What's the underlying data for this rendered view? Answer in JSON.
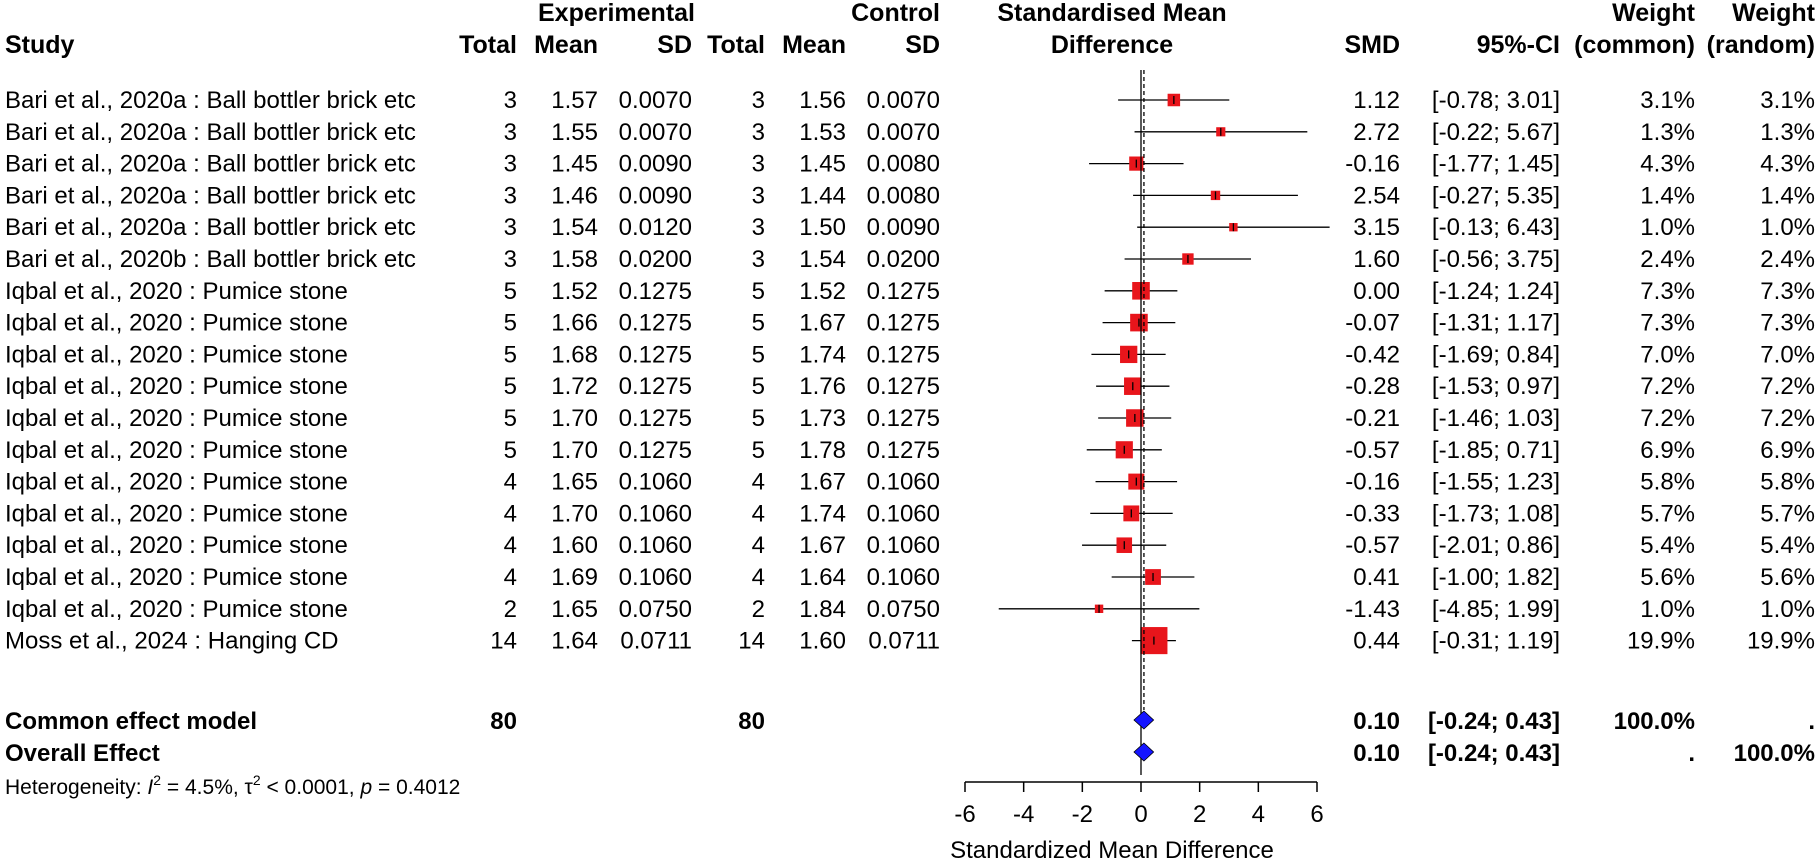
{
  "chart_data": {
    "type": "forest",
    "headers": {
      "study": "Study",
      "experimental": "Experimental",
      "control": "Control",
      "total": "Total",
      "mean": "Mean",
      "sd": "SD",
      "effect_line1": "Standardised Mean",
      "effect_line2": "Difference",
      "smd": "SMD",
      "ci": "95%-CI",
      "weight1": "Weight",
      "weight_common": "(common)",
      "weight_random": "(random)"
    },
    "studies": [
      {
        "label": "Bari et al., 2020a : Ball bottler brick etc",
        "e_total": "3",
        "e_mean": "1.57",
        "e_sd": "0.0070",
        "c_total": "3",
        "c_mean": "1.56",
        "c_sd": "0.0070",
        "smd": 1.12,
        "lower": -0.78,
        "upper": 3.01,
        "smd_text": "1.12",
        "ci_text": "[-0.78; 3.01]",
        "w_common": "3.1%",
        "w_random": "3.1%",
        "weight": 3.1
      },
      {
        "label": "Bari et al., 2020a : Ball bottler brick etc",
        "e_total": "3",
        "e_mean": "1.55",
        "e_sd": "0.0070",
        "c_total": "3",
        "c_mean": "1.53",
        "c_sd": "0.0070",
        "smd": 2.72,
        "lower": -0.22,
        "upper": 5.67,
        "smd_text": "2.72",
        "ci_text": "[-0.22; 5.67]",
        "w_common": "1.3%",
        "w_random": "1.3%",
        "weight": 1.3
      },
      {
        "label": "Bari et al., 2020a : Ball bottler brick etc",
        "e_total": "3",
        "e_mean": "1.45",
        "e_sd": "0.0090",
        "c_total": "3",
        "c_mean": "1.45",
        "c_sd": "0.0080",
        "smd": -0.16,
        "lower": -1.77,
        "upper": 1.45,
        "smd_text": "-0.16",
        "ci_text": "[-1.77; 1.45]",
        "w_common": "4.3%",
        "w_random": "4.3%",
        "weight": 4.3
      },
      {
        "label": "Bari et al., 2020a : Ball bottler brick etc",
        "e_total": "3",
        "e_mean": "1.46",
        "e_sd": "0.0090",
        "c_total": "3",
        "c_mean": "1.44",
        "c_sd": "0.0080",
        "smd": 2.54,
        "lower": -0.27,
        "upper": 5.35,
        "smd_text": "2.54",
        "ci_text": "[-0.27; 5.35]",
        "w_common": "1.4%",
        "w_random": "1.4%",
        "weight": 1.4
      },
      {
        "label": "Bari et al., 2020a : Ball bottler brick etc",
        "e_total": "3",
        "e_mean": "1.54",
        "e_sd": "0.0120",
        "c_total": "3",
        "c_mean": "1.50",
        "c_sd": "0.0090",
        "smd": 3.15,
        "lower": -0.13,
        "upper": 6.43,
        "smd_text": "3.15",
        "ci_text": "[-0.13; 6.43]",
        "w_common": "1.0%",
        "w_random": "1.0%",
        "weight": 1.0
      },
      {
        "label": "Bari et al., 2020b : Ball bottler brick etc",
        "e_total": "3",
        "e_mean": "1.58",
        "e_sd": "0.0200",
        "c_total": "3",
        "c_mean": "1.54",
        "c_sd": "0.0200",
        "smd": 1.6,
        "lower": -0.56,
        "upper": 3.75,
        "smd_text": "1.60",
        "ci_text": "[-0.56; 3.75]",
        "w_common": "2.4%",
        "w_random": "2.4%",
        "weight": 2.4
      },
      {
        "label": "Iqbal et al., 2020 : Pumice stone",
        "e_total": "5",
        "e_mean": "1.52",
        "e_sd": "0.1275",
        "c_total": "5",
        "c_mean": "1.52",
        "c_sd": "0.1275",
        "smd": 0.0,
        "lower": -1.24,
        "upper": 1.24,
        "smd_text": "0.00",
        "ci_text": "[-1.24; 1.24]",
        "w_common": "7.3%",
        "w_random": "7.3%",
        "weight": 7.3
      },
      {
        "label": "Iqbal et al., 2020 : Pumice stone",
        "e_total": "5",
        "e_mean": "1.66",
        "e_sd": "0.1275",
        "c_total": "5",
        "c_mean": "1.67",
        "c_sd": "0.1275",
        "smd": -0.07,
        "lower": -1.31,
        "upper": 1.17,
        "smd_text": "-0.07",
        "ci_text": "[-1.31; 1.17]",
        "w_common": "7.3%",
        "w_random": "7.3%",
        "weight": 7.3
      },
      {
        "label": "Iqbal et al., 2020 : Pumice stone",
        "e_total": "5",
        "e_mean": "1.68",
        "e_sd": "0.1275",
        "c_total": "5",
        "c_mean": "1.74",
        "c_sd": "0.1275",
        "smd": -0.42,
        "lower": -1.69,
        "upper": 0.84,
        "smd_text": "-0.42",
        "ci_text": "[-1.69; 0.84]",
        "w_common": "7.0%",
        "w_random": "7.0%",
        "weight": 7.0
      },
      {
        "label": "Iqbal et al., 2020 : Pumice stone",
        "e_total": "5",
        "e_mean": "1.72",
        "e_sd": "0.1275",
        "c_total": "5",
        "c_mean": "1.76",
        "c_sd": "0.1275",
        "smd": -0.28,
        "lower": -1.53,
        "upper": 0.97,
        "smd_text": "-0.28",
        "ci_text": "[-1.53; 0.97]",
        "w_common": "7.2%",
        "w_random": "7.2%",
        "weight": 7.2
      },
      {
        "label": "Iqbal et al., 2020 : Pumice stone",
        "e_total": "5",
        "e_mean": "1.70",
        "e_sd": "0.1275",
        "c_total": "5",
        "c_mean": "1.73",
        "c_sd": "0.1275",
        "smd": -0.21,
        "lower": -1.46,
        "upper": 1.03,
        "smd_text": "-0.21",
        "ci_text": "[-1.46; 1.03]",
        "w_common": "7.2%",
        "w_random": "7.2%",
        "weight": 7.2
      },
      {
        "label": "Iqbal et al., 2020 : Pumice stone",
        "e_total": "5",
        "e_mean": "1.70",
        "e_sd": "0.1275",
        "c_total": "5",
        "c_mean": "1.78",
        "c_sd": "0.1275",
        "smd": -0.57,
        "lower": -1.85,
        "upper": 0.71,
        "smd_text": "-0.57",
        "ci_text": "[-1.85; 0.71]",
        "w_common": "6.9%",
        "w_random": "6.9%",
        "weight": 6.9
      },
      {
        "label": "Iqbal et al., 2020 : Pumice stone",
        "e_total": "4",
        "e_mean": "1.65",
        "e_sd": "0.1060",
        "c_total": "4",
        "c_mean": "1.67",
        "c_sd": "0.1060",
        "smd": -0.16,
        "lower": -1.55,
        "upper": 1.23,
        "smd_text": "-0.16",
        "ci_text": "[-1.55; 1.23]",
        "w_common": "5.8%",
        "w_random": "5.8%",
        "weight": 5.8
      },
      {
        "label": "Iqbal et al., 2020 : Pumice stone",
        "e_total": "4",
        "e_mean": "1.70",
        "e_sd": "0.1060",
        "c_total": "4",
        "c_mean": "1.74",
        "c_sd": "0.1060",
        "smd": -0.33,
        "lower": -1.73,
        "upper": 1.08,
        "smd_text": "-0.33",
        "ci_text": "[-1.73; 1.08]",
        "w_common": "5.7%",
        "w_random": "5.7%",
        "weight": 5.7
      },
      {
        "label": "Iqbal et al., 2020 : Pumice stone",
        "e_total": "4",
        "e_mean": "1.60",
        "e_sd": "0.1060",
        "c_total": "4",
        "c_mean": "1.67",
        "c_sd": "0.1060",
        "smd": -0.57,
        "lower": -2.01,
        "upper": 0.86,
        "smd_text": "-0.57",
        "ci_text": "[-2.01; 0.86]",
        "w_common": "5.4%",
        "w_random": "5.4%",
        "weight": 5.4
      },
      {
        "label": "Iqbal et al., 2020 : Pumice stone",
        "e_total": "4",
        "e_mean": "1.69",
        "e_sd": "0.1060",
        "c_total": "4",
        "c_mean": "1.64",
        "c_sd": "0.1060",
        "smd": 0.41,
        "lower": -1.0,
        "upper": 1.82,
        "smd_text": "0.41",
        "ci_text": "[-1.00; 1.82]",
        "w_common": "5.6%",
        "w_random": "5.6%",
        "weight": 5.6
      },
      {
        "label": "Iqbal et al., 2020 : Pumice stone",
        "e_total": "2",
        "e_mean": "1.65",
        "e_sd": "0.0750",
        "c_total": "2",
        "c_mean": "1.84",
        "c_sd": "0.0750",
        "smd": -1.43,
        "lower": -4.85,
        "upper": 1.99,
        "smd_text": "-1.43",
        "ci_text": "[-4.85; 1.99]",
        "w_common": "1.0%",
        "w_random": "1.0%",
        "weight": 1.0
      },
      {
        "label": "Moss et al., 2024 : Hanging CD",
        "e_total": "14",
        "e_mean": "1.64",
        "e_sd": "0.0711",
        "c_total": "14",
        "c_mean": "1.60",
        "c_sd": "0.0711",
        "smd": 0.44,
        "lower": -0.31,
        "upper": 1.19,
        "smd_text": "0.44",
        "ci_text": "[-0.31; 1.19]",
        "w_common": "19.9%",
        "w_random": "19.9%",
        "weight": 19.9
      }
    ],
    "common": {
      "label": "Common effect model",
      "e_total": "80",
      "c_total": "80",
      "smd": 0.1,
      "lower": -0.24,
      "upper": 0.43,
      "smd_text": "0.10",
      "ci_text": "[-0.24; 0.43]",
      "w_common": "100.0%",
      "w_random": "."
    },
    "overall": {
      "label": "Overall Effect",
      "smd": 0.1,
      "lower": -0.24,
      "upper": 0.43,
      "smd_text": "0.10",
      "ci_text": "[-0.24; 0.43]",
      "w_common": ".",
      "w_random": "100.0%"
    },
    "heterogeneity": {
      "prefix": "Heterogeneity: ",
      "i": "I",
      "sup2": "2",
      "i2_value": " = 4.5%, ",
      "tau": "τ",
      "tau_value": " < 0.0001, ",
      "p": "p",
      "p_value": " = 0.4012"
    },
    "xaxis": {
      "label": "Standardized Mean Difference",
      "ticks": [
        -6,
        -4,
        -2,
        0,
        2,
        4,
        6
      ],
      "tick_labels": [
        "-6",
        "-4",
        "-2",
        "0",
        "2",
        "4",
        "6"
      ],
      "range": [
        -6,
        6
      ]
    },
    "colors": {
      "square": "#e8151b",
      "diamond": "#1414ff",
      "line": "#000000"
    }
  }
}
